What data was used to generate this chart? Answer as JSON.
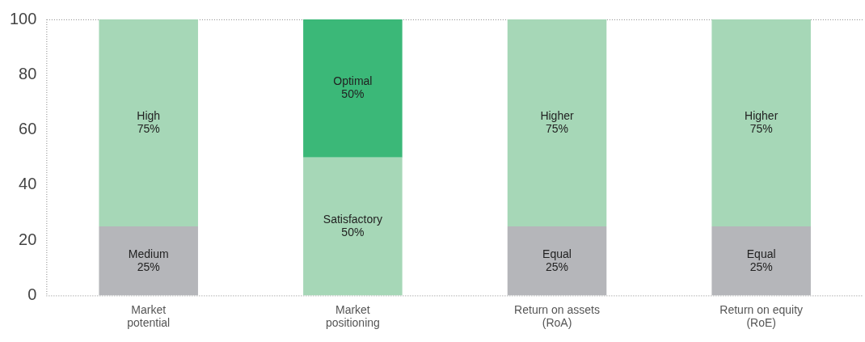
{
  "chart_data": {
    "type": "bar",
    "stacked": true,
    "categories": [
      "Market\npotential",
      "Market\npositioning",
      "Return on assets\n(RoA)",
      "Return on equity\n(RoE)"
    ],
    "series": [
      {
        "colors": [
          "#b5b6ba",
          "#a6d7b7",
          "#b5b6ba",
          "#b5b6ba"
        ],
        "values": [
          25,
          50,
          25,
          25
        ],
        "value_labels": [
          "Medium\n25%",
          "Satisfactory\n50%",
          "Equal\n25%",
          "Equal\n25%"
        ]
      },
      {
        "colors": [
          "#a6d7b7",
          "#3bb878",
          "#a6d7b7",
          "#a6d7b7"
        ],
        "values": [
          75,
          50,
          75,
          75
        ],
        "value_labels": [
          "High\n75%",
          "Optimal\n50%",
          "Higher\n75%",
          "Higher\n75%"
        ]
      }
    ],
    "ylim": [
      0,
      100
    ],
    "yticks": [
      0,
      20,
      40,
      60,
      80,
      100
    ],
    "grid": false,
    "legend": false
  }
}
